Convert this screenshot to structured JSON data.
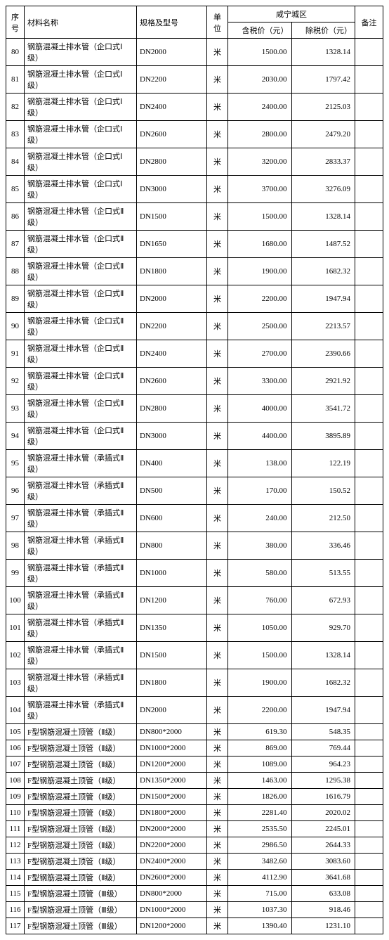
{
  "header": {
    "seq": "序号",
    "name": "材料名称",
    "spec": "规格及型号",
    "unit": "单位",
    "region": "咸宁城区",
    "tax_price": "含税价（元）",
    "notax_price": "除税价（元）",
    "remark": "备注"
  },
  "rows": [
    {
      "seq": "80",
      "name": "钢筋混凝土排水管（企口式Ⅰ级）",
      "spec": "DN2000",
      "unit": "米",
      "tax": "1500.00",
      "notax": "1328.14",
      "remark": ""
    },
    {
      "seq": "81",
      "name": "钢筋混凝土排水管（企口式Ⅰ级）",
      "spec": "DN2200",
      "unit": "米",
      "tax": "2030.00",
      "notax": "1797.42",
      "remark": ""
    },
    {
      "seq": "82",
      "name": "钢筋混凝土排水管（企口式Ⅰ级）",
      "spec": "DN2400",
      "unit": "米",
      "tax": "2400.00",
      "notax": "2125.03",
      "remark": ""
    },
    {
      "seq": "83",
      "name": "钢筋混凝土排水管（企口式Ⅰ级）",
      "spec": "DN2600",
      "unit": "米",
      "tax": "2800.00",
      "notax": "2479.20",
      "remark": ""
    },
    {
      "seq": "84",
      "name": "钢筋混凝土排水管（企口式Ⅰ级）",
      "spec": "DN2800",
      "unit": "米",
      "tax": "3200.00",
      "notax": "2833.37",
      "remark": ""
    },
    {
      "seq": "85",
      "name": "钢筋混凝土排水管（企口式Ⅰ级）",
      "spec": "DN3000",
      "unit": "米",
      "tax": "3700.00",
      "notax": "3276.09",
      "remark": ""
    },
    {
      "seq": "86",
      "name": "钢筋混凝土排水管（企口式Ⅱ级）",
      "spec": "DN1500",
      "unit": "米",
      "tax": "1500.00",
      "notax": "1328.14",
      "remark": ""
    },
    {
      "seq": "87",
      "name": "钢筋混凝土排水管（企口式Ⅱ级）",
      "spec": "DN1650",
      "unit": "米",
      "tax": "1680.00",
      "notax": "1487.52",
      "remark": ""
    },
    {
      "seq": "88",
      "name": "钢筋混凝土排水管（企口式Ⅱ级）",
      "spec": "DN1800",
      "unit": "米",
      "tax": "1900.00",
      "notax": "1682.32",
      "remark": ""
    },
    {
      "seq": "89",
      "name": "钢筋混凝土排水管（企口式Ⅱ级）",
      "spec": "DN2000",
      "unit": "米",
      "tax": "2200.00",
      "notax": "1947.94",
      "remark": ""
    },
    {
      "seq": "90",
      "name": "钢筋混凝土排水管（企口式Ⅱ级）",
      "spec": "DN2200",
      "unit": "米",
      "tax": "2500.00",
      "notax": "2213.57",
      "remark": ""
    },
    {
      "seq": "91",
      "name": "钢筋混凝土排水管（企口式Ⅱ级）",
      "spec": "DN2400",
      "unit": "米",
      "tax": "2700.00",
      "notax": "2390.66",
      "remark": ""
    },
    {
      "seq": "92",
      "name": "钢筋混凝土排水管（企口式Ⅱ级）",
      "spec": "DN2600",
      "unit": "米",
      "tax": "3300.00",
      "notax": "2921.92",
      "remark": ""
    },
    {
      "seq": "93",
      "name": "钢筋混凝土排水管（企口式Ⅱ级）",
      "spec": "DN2800",
      "unit": "米",
      "tax": "4000.00",
      "notax": "3541.72",
      "remark": ""
    },
    {
      "seq": "94",
      "name": "钢筋混凝土排水管（企口式Ⅱ级）",
      "spec": "DN3000",
      "unit": "米",
      "tax": "4400.00",
      "notax": "3895.89",
      "remark": ""
    },
    {
      "seq": "95",
      "name": "钢筋混凝土排水管（承插式Ⅱ级）",
      "spec": "DN400",
      "unit": "米",
      "tax": "138.00",
      "notax": "122.19",
      "remark": ""
    },
    {
      "seq": "96",
      "name": "钢筋混凝土排水管（承插式Ⅱ级）",
      "spec": "DN500",
      "unit": "米",
      "tax": "170.00",
      "notax": "150.52",
      "remark": ""
    },
    {
      "seq": "97",
      "name": "钢筋混凝土排水管（承插式Ⅱ级）",
      "spec": "DN600",
      "unit": "米",
      "tax": "240.00",
      "notax": "212.50",
      "remark": ""
    },
    {
      "seq": "98",
      "name": "钢筋混凝土排水管（承插式Ⅱ级）",
      "spec": "DN800",
      "unit": "米",
      "tax": "380.00",
      "notax": "336.46",
      "remark": ""
    },
    {
      "seq": "99",
      "name": "钢筋混凝土排水管（承插式Ⅱ级）",
      "spec": "DN1000",
      "unit": "米",
      "tax": "580.00",
      "notax": "513.55",
      "remark": ""
    },
    {
      "seq": "100",
      "name": "钢筋混凝土排水管（承插式Ⅱ级）",
      "spec": "DN1200",
      "unit": "米",
      "tax": "760.00",
      "notax": "672.93",
      "remark": ""
    },
    {
      "seq": "101",
      "name": "钢筋混凝土排水管（承插式Ⅱ级）",
      "spec": "DN1350",
      "unit": "米",
      "tax": "1050.00",
      "notax": "929.70",
      "remark": ""
    },
    {
      "seq": "102",
      "name": "钢筋混凝土排水管（承插式Ⅱ级）",
      "spec": "DN1500",
      "unit": "米",
      "tax": "1500.00",
      "notax": "1328.14",
      "remark": ""
    },
    {
      "seq": "103",
      "name": "钢筋混凝土排水管（承插式Ⅱ级）",
      "spec": "DN1800",
      "unit": "米",
      "tax": "1900.00",
      "notax": "1682.32",
      "remark": ""
    },
    {
      "seq": "104",
      "name": "钢筋混凝土排水管（承插式Ⅱ级）",
      "spec": "DN2000",
      "unit": "米",
      "tax": "2200.00",
      "notax": "1947.94",
      "remark": ""
    },
    {
      "seq": "105",
      "name": "F型钢筋混凝土顶管（Ⅱ级）",
      "spec": "DN800*2000",
      "unit": "米",
      "tax": "619.30",
      "notax": "548.35",
      "remark": ""
    },
    {
      "seq": "106",
      "name": "F型钢筋混凝土顶管（Ⅱ级）",
      "spec": "DN1000*2000",
      "unit": "米",
      "tax": "869.00",
      "notax": "769.44",
      "remark": ""
    },
    {
      "seq": "107",
      "name": "F型钢筋混凝土顶管（Ⅱ级）",
      "spec": "DN1200*2000",
      "unit": "米",
      "tax": "1089.00",
      "notax": "964.23",
      "remark": ""
    },
    {
      "seq": "108",
      "name": "F型钢筋混凝土顶管（Ⅱ级）",
      "spec": "DN1350*2000",
      "unit": "米",
      "tax": "1463.00",
      "notax": "1295.38",
      "remark": ""
    },
    {
      "seq": "109",
      "name": "F型钢筋混凝土顶管（Ⅱ级）",
      "spec": "DN1500*2000",
      "unit": "米",
      "tax": "1826.00",
      "notax": "1616.79",
      "remark": ""
    },
    {
      "seq": "110",
      "name": "F型钢筋混凝土顶管（Ⅱ级）",
      "spec": "DN1800*2000",
      "unit": "米",
      "tax": "2281.40",
      "notax": "2020.02",
      "remark": ""
    },
    {
      "seq": "111",
      "name": "F型钢筋混凝土顶管（Ⅱ级）",
      "spec": "DN2000*2000",
      "unit": "米",
      "tax": "2535.50",
      "notax": "2245.01",
      "remark": ""
    },
    {
      "seq": "112",
      "name": "F型钢筋混凝土顶管（Ⅱ级）",
      "spec": "DN2200*2000",
      "unit": "米",
      "tax": "2986.50",
      "notax": "2644.33",
      "remark": ""
    },
    {
      "seq": "113",
      "name": "F型钢筋混凝土顶管（Ⅱ级）",
      "spec": "DN2400*2000",
      "unit": "米",
      "tax": "3482.60",
      "notax": "3083.60",
      "remark": ""
    },
    {
      "seq": "114",
      "name": "F型钢筋混凝土顶管（Ⅱ级）",
      "spec": "DN2600*2000",
      "unit": "米",
      "tax": "4112.90",
      "notax": "3641.68",
      "remark": ""
    },
    {
      "seq": "115",
      "name": "F型钢筋混凝土顶管（Ⅲ级）",
      "spec": "DN800*2000",
      "unit": "米",
      "tax": "715.00",
      "notax": "633.08",
      "remark": ""
    },
    {
      "seq": "116",
      "name": "F型钢筋混凝土顶管（Ⅲ级）",
      "spec": "DN1000*2000",
      "unit": "米",
      "tax": "1037.30",
      "notax": "918.46",
      "remark": ""
    },
    {
      "seq": "117",
      "name": "F型钢筋混凝土顶管（Ⅲ级）",
      "spec": "DN1200*2000",
      "unit": "米",
      "tax": "1390.40",
      "notax": "1231.10",
      "remark": ""
    }
  ]
}
